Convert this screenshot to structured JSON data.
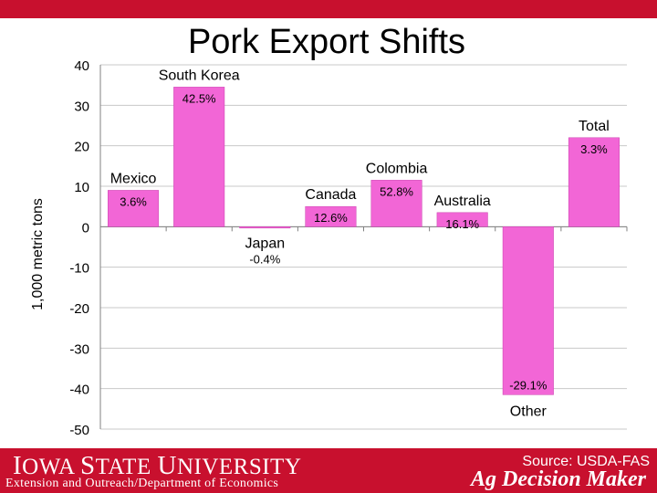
{
  "slide": {
    "title": "Pork Export Shifts"
  },
  "footer": {
    "university": "Iowa State University",
    "department": "Extension and Outreach/Department of Economics",
    "source": "Source: USDA-FAS",
    "brand": "Ag Decision Maker"
  },
  "colors": {
    "bar": "#f266d6",
    "bar_stroke": "#c93fae",
    "footer_red": "#c8102e",
    "grid": "#c8c8c8",
    "axis": "#808080"
  },
  "chart_data": {
    "type": "bar",
    "title": "Pork Export Shifts",
    "xlabel": "",
    "ylabel": "1,000 metric tons",
    "ylim": [
      -50,
      40
    ],
    "yticks": [
      40,
      30,
      20,
      10,
      0,
      -10,
      -20,
      -30,
      -40,
      -50
    ],
    "grid": true,
    "categories": [
      "Mexico",
      "South Korea",
      "Japan",
      "Canada",
      "Colombia",
      "Australia",
      "Other",
      "Total"
    ],
    "values": [
      9,
      34.5,
      -0.3,
      5,
      11.5,
      3.5,
      -41.5,
      22
    ],
    "pct_labels": [
      "3.6%",
      "42.5%",
      "-0.4%",
      "12.6%",
      "52.8%",
      "16.1%",
      "-29.1%",
      "3.3%"
    ]
  }
}
